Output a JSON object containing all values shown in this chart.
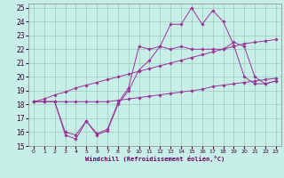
{
  "background_color": "#c8eee8",
  "grid_color": "#99ccbb",
  "line_color": "#993399",
  "xlim": [
    -0.5,
    23.5
  ],
  "ylim": [
    15,
    25.3
  ],
  "yticks": [
    15,
    16,
    17,
    18,
    19,
    20,
    21,
    22,
    23,
    24,
    25
  ],
  "xticks": [
    0,
    1,
    2,
    3,
    4,
    5,
    6,
    7,
    8,
    9,
    10,
    11,
    12,
    13,
    14,
    15,
    16,
    17,
    18,
    19,
    20,
    21,
    22,
    23
  ],
  "xlabel": "Windchill (Refroidissement éolien,°C)",
  "series": [
    [
      18.2,
      18.2,
      18.2,
      15.8,
      15.5,
      16.8,
      15.8,
      16.1,
      18.0,
      19.0,
      20.5,
      21.2,
      22.2,
      23.8,
      23.8,
      25.0,
      23.8,
      24.8,
      24.0,
      22.3,
      20.0,
      19.5,
      19.5,
      19.7
    ],
    [
      18.2,
      18.2,
      18.2,
      16.0,
      15.8,
      16.8,
      15.9,
      16.2,
      18.1,
      19.2,
      22.2,
      22.0,
      22.2,
      22.0,
      22.2,
      22.0,
      22.0,
      22.0,
      22.0,
      22.5,
      22.2,
      20.0,
      19.5,
      19.7
    ],
    [
      18.2,
      18.4,
      18.7,
      18.9,
      19.2,
      19.4,
      19.6,
      19.8,
      20.0,
      20.2,
      20.4,
      20.6,
      20.8,
      21.0,
      21.2,
      21.4,
      21.6,
      21.8,
      22.0,
      22.2,
      22.4,
      22.5,
      22.6,
      22.7
    ],
    [
      18.2,
      18.2,
      18.2,
      18.2,
      18.2,
      18.2,
      18.2,
      18.2,
      18.3,
      18.4,
      18.5,
      18.6,
      18.7,
      18.8,
      18.9,
      19.0,
      19.1,
      19.3,
      19.4,
      19.5,
      19.6,
      19.7,
      19.8,
      19.9
    ]
  ]
}
